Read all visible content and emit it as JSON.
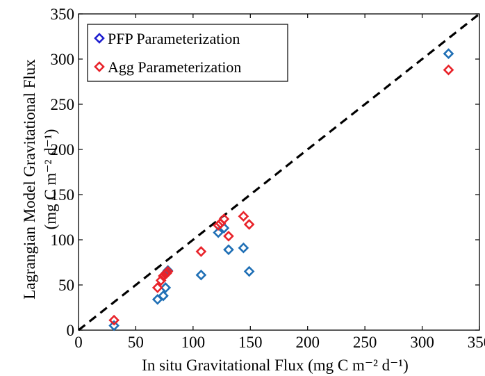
{
  "chart_data": {
    "type": "scatter",
    "title": "",
    "xlabel": "In situ Gravitational Flux (mg C m⁻² d⁻¹)",
    "ylabel_line1": "Lagrangian Model Gravitational Flux",
    "ylabel_line2": "(mg C m⁻² d⁻¹)",
    "xlim": [
      0,
      350
    ],
    "ylim": [
      0,
      350
    ],
    "xticks": [
      0,
      50,
      100,
      150,
      200,
      250,
      300,
      350
    ],
    "yticks": [
      0,
      50,
      100,
      150,
      200,
      250,
      300,
      350
    ],
    "grid": false,
    "legend_position": "top-left",
    "reference_line": {
      "style": "dashed",
      "color": "#000000",
      "from": [
        0,
        0
      ],
      "to": [
        350,
        350
      ]
    },
    "series": [
      {
        "name": "PFP Parameterization",
        "color": "#1f6fb5",
        "marker": "diamond",
        "x": [
          31,
          69,
          74,
          76,
          77,
          78,
          107,
          122,
          127,
          131,
          144,
          149,
          323
        ],
        "y": [
          5,
          34,
          38,
          47,
          64,
          66,
          61,
          108,
          113,
          89,
          91,
          65,
          306
        ]
      },
      {
        "name": "Agg Parameterization",
        "color": "#e8232a",
        "marker": "diamond",
        "x": [
          31,
          69,
          72,
          74,
          76,
          77,
          78,
          107,
          122,
          124,
          127,
          131,
          144,
          149,
          323
        ],
        "y": [
          11,
          47,
          55,
          60,
          62,
          63,
          65,
          87,
          116,
          118,
          123,
          104,
          126,
          117,
          288
        ]
      }
    ]
  }
}
